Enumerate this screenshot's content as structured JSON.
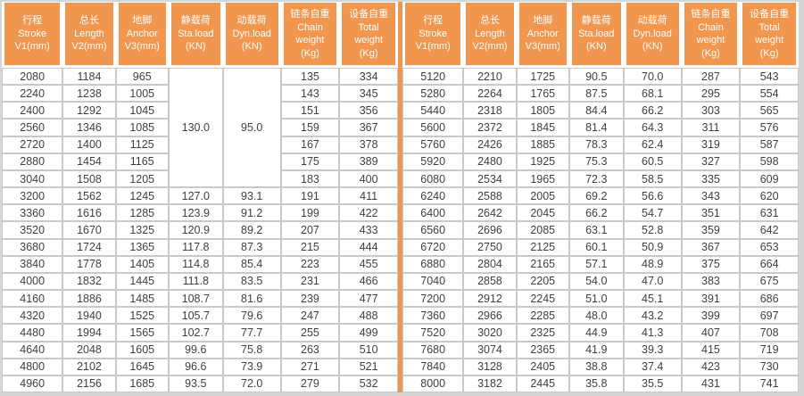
{
  "colors": {
    "header_bg": "#F0964F",
    "divider": "#F0964F",
    "grid": "#C9C9C9",
    "outer_border": "#D6D6D6",
    "header_text": "#FFFFFF",
    "cell_text": "#3F3F3F"
  },
  "table": {
    "columns": [
      {
        "key": "stroke",
        "lines": [
          "行程",
          "Stroke",
          "V1(mm)"
        ]
      },
      {
        "key": "length",
        "lines": [
          "总长",
          "Length",
          "V2(mm)"
        ]
      },
      {
        "key": "anchor",
        "lines": [
          "地脚",
          "Anchor",
          "V3(mm)"
        ]
      },
      {
        "key": "sta-load",
        "lines": [
          "静载荷",
          "Sta.load",
          "(KN)"
        ]
      },
      {
        "key": "dyn-load",
        "lines": [
          "动载荷",
          "Dyn.load",
          "(KN)"
        ]
      },
      {
        "key": "chain-weight",
        "lines": [
          "链条自重",
          "Chain",
          "weight",
          "(Kg)"
        ]
      },
      {
        "key": "total-weight",
        "lines": [
          "设备自重",
          "Total",
          "weight",
          "(Kg)"
        ]
      }
    ],
    "left": {
      "merges": [
        {
          "row": 0,
          "col": 3,
          "rowspan": 7,
          "value": "130.0"
        },
        {
          "row": 0,
          "col": 4,
          "rowspan": 7,
          "value": "95.0"
        }
      ],
      "rows": [
        [
          "2080",
          "1184",
          "965",
          null,
          null,
          "135",
          "334"
        ],
        [
          "2240",
          "1238",
          "1005",
          null,
          null,
          "143",
          "345"
        ],
        [
          "2400",
          "1292",
          "1045",
          null,
          null,
          "151",
          "356"
        ],
        [
          "2560",
          "1346",
          "1085",
          null,
          null,
          "159",
          "367"
        ],
        [
          "2720",
          "1400",
          "1125",
          null,
          null,
          "167",
          "378"
        ],
        [
          "2880",
          "1454",
          "1165",
          null,
          null,
          "175",
          "389"
        ],
        [
          "3040",
          "1508",
          "1205",
          null,
          null,
          "183",
          "400"
        ],
        [
          "3200",
          "1562",
          "1245",
          "127.0",
          "93.1",
          "191",
          "411"
        ],
        [
          "3360",
          "1616",
          "1285",
          "123.9",
          "91.2",
          "199",
          "422"
        ],
        [
          "3520",
          "1670",
          "1325",
          "120.9",
          "89.2",
          "207",
          "433"
        ],
        [
          "3680",
          "1724",
          "1365",
          "117.8",
          "87.3",
          "215",
          "444"
        ],
        [
          "3840",
          "1778",
          "1405",
          "114.8",
          "85.4",
          "223",
          "455"
        ],
        [
          "4000",
          "1832",
          "1445",
          "111.8",
          "83.5",
          "231",
          "466"
        ],
        [
          "4160",
          "1886",
          "1485",
          "108.7",
          "81.6",
          "239",
          "477"
        ],
        [
          "4320",
          "1940",
          "1525",
          "105.7",
          "79.6",
          "247",
          "488"
        ],
        [
          "4480",
          "1994",
          "1565",
          "102.7",
          "77.7",
          "255",
          "499"
        ],
        [
          "4640",
          "2048",
          "1605",
          "99.6",
          "75.8",
          "263",
          "510"
        ],
        [
          "4800",
          "2102",
          "1645",
          "96.6",
          "73.9",
          "271",
          "521"
        ],
        [
          "4960",
          "2156",
          "1685",
          "93.5",
          "72.0",
          "279",
          "532"
        ]
      ]
    },
    "right": {
      "merges": [],
      "rows": [
        [
          "5120",
          "2210",
          "1725",
          "90.5",
          "70.0",
          "287",
          "543"
        ],
        [
          "5280",
          "2264",
          "1765",
          "87.5",
          "68.1",
          "295",
          "554"
        ],
        [
          "5440",
          "2318",
          "1805",
          "84.4",
          "66.2",
          "303",
          "565"
        ],
        [
          "5600",
          "2372",
          "1845",
          "81.4",
          "64.3",
          "311",
          "576"
        ],
        [
          "5760",
          "2426",
          "1885",
          "78.3",
          "62.4",
          "319",
          "587"
        ],
        [
          "5920",
          "2480",
          "1925",
          "75.3",
          "60.5",
          "327",
          "598"
        ],
        [
          "6080",
          "2534",
          "1965",
          "72.3",
          "58.5",
          "335",
          "609"
        ],
        [
          "6240",
          "2588",
          "2005",
          "69.2",
          "56.6",
          "343",
          "620"
        ],
        [
          "6400",
          "2642",
          "2045",
          "66.2",
          "54.7",
          "351",
          "631"
        ],
        [
          "6560",
          "2696",
          "2085",
          "63.1",
          "52.8",
          "359",
          "642"
        ],
        [
          "6720",
          "2750",
          "2125",
          "60.1",
          "50.9",
          "367",
          "653"
        ],
        [
          "6880",
          "2804",
          "2165",
          "57.1",
          "48.9",
          "375",
          "664"
        ],
        [
          "7040",
          "2858",
          "2205",
          "54.0",
          "47.0",
          "383",
          "675"
        ],
        [
          "7200",
          "2912",
          "2245",
          "51.0",
          "45.1",
          "391",
          "686"
        ],
        [
          "7360",
          "2966",
          "2285",
          "48.0",
          "43.2",
          "399",
          "697"
        ],
        [
          "7520",
          "3020",
          "2325",
          "44.9",
          "41.3",
          "407",
          "708"
        ],
        [
          "7680",
          "3074",
          "2365",
          "41.9",
          "39.3",
          "415",
          "719"
        ],
        [
          "7840",
          "3128",
          "2405",
          "38.8",
          "37.4",
          "423",
          "730"
        ],
        [
          "8000",
          "3182",
          "2445",
          "35.8",
          "35.5",
          "431",
          "741"
        ]
      ]
    }
  }
}
